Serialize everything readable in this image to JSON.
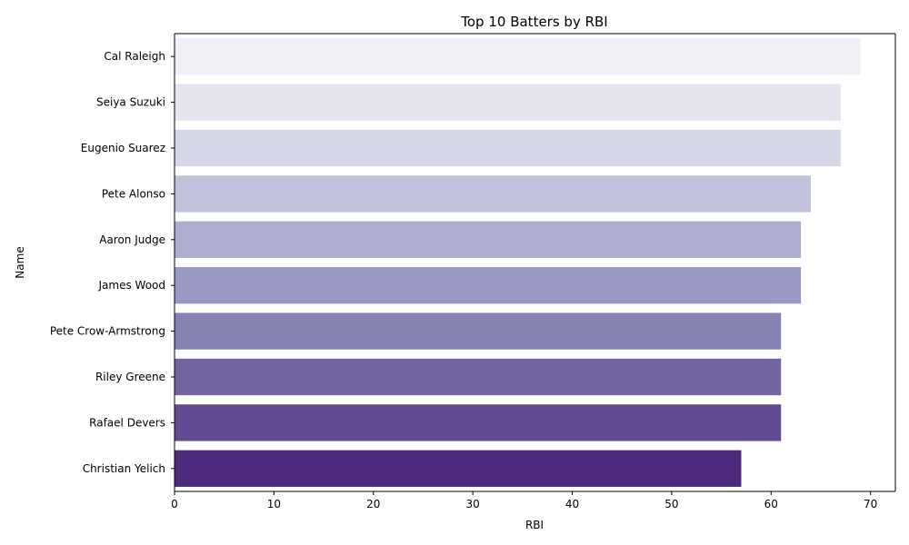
{
  "chart_data": {
    "type": "bar",
    "orientation": "horizontal",
    "title": "Top 10 Batters by RBI",
    "xlabel": "RBI",
    "ylabel": "Name",
    "xlim": [
      0,
      72.5
    ],
    "xticks": [
      0,
      10,
      20,
      30,
      40,
      50,
      60,
      70
    ],
    "grid": false,
    "categories": [
      "Cal Raleigh",
      "Seiya Suzuki",
      "Eugenio Suarez",
      "Pete Alonso",
      "Aaron Judge",
      "James Wood",
      "Pete Crow-Armstrong",
      "Riley Greene",
      "Rafael Devers",
      "Christian Yelich"
    ],
    "values": [
      69,
      67,
      67,
      64,
      63,
      63,
      61,
      61,
      61,
      57
    ],
    "colors": [
      "#f2f0f7",
      "#e6e4ef",
      "#d5d6e6",
      "#c2c2dc",
      "#aeadcf",
      "#9998c2",
      "#8682b3",
      "#7464a1",
      "#634892",
      "#4e2a7e"
    ]
  }
}
